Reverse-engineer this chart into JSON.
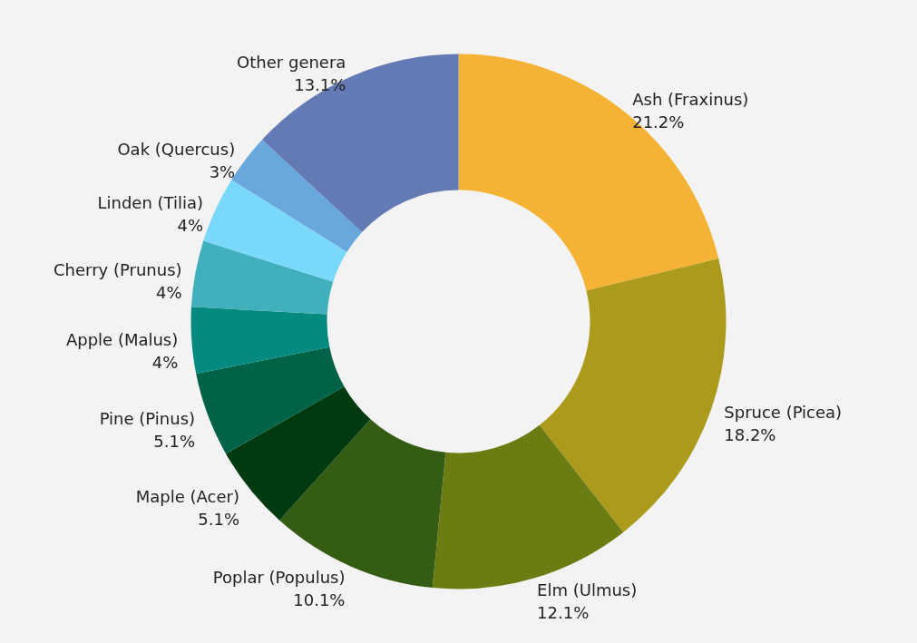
{
  "chart_data": {
    "type": "donut",
    "categories": [
      "Ash (Fraxinus)",
      "Spruce (Picea)",
      "Elm (Ulmus)",
      "Poplar (Populus)",
      "Maple (Acer)",
      "Pine (Pinus)",
      "Apple (Malus)",
      "Cherry (Prunus)",
      "Linden (Tilia)",
      "Oak (Quercus)",
      "Other genera"
    ],
    "values": [
      21.2,
      18.2,
      12.1,
      10.1,
      5.1,
      5.1,
      4,
      4,
      4,
      3,
      13.1
    ],
    "value_labels": [
      "21.2%",
      "18.2%",
      "12.1%",
      "10.1%",
      "5.1%",
      "5.1%",
      "4%",
      "4%",
      "4%",
      "3%",
      "13.1%"
    ],
    "colors": [
      "#f4b335",
      "#ac9a1c",
      "#6b7c12",
      "#345c12",
      "#003a10",
      "#006246",
      "#048a7e",
      "#40b0bc",
      "#7ad8fa",
      "#68a8dc",
      "#647ab4"
    ]
  }
}
